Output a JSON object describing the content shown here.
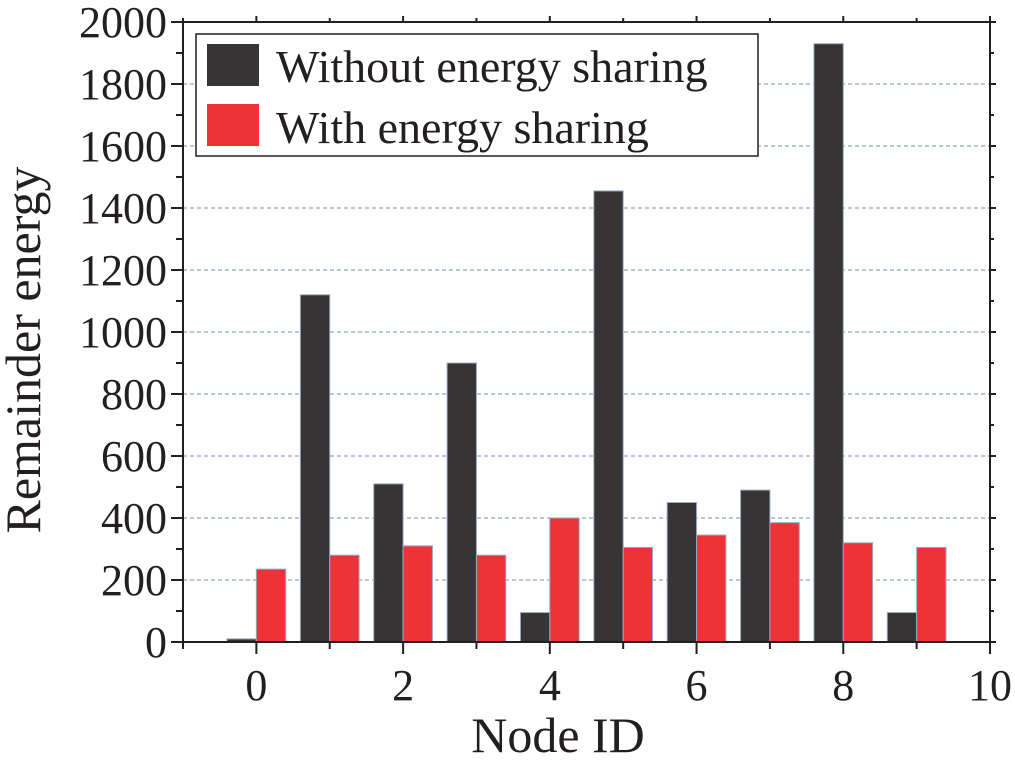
{
  "colors": {
    "without": "#373435",
    "with": "#ee3338",
    "grid": "#7b8fb8",
    "axis": "#231f20"
  },
  "chart_data": {
    "type": "bar",
    "title": "",
    "xlabel": "Node ID",
    "ylabel": "Remainder energy",
    "xlim": [
      -1,
      10
    ],
    "ylim": [
      0,
      2000
    ],
    "x_ticks": [
      "0",
      "2",
      "4",
      "6",
      "8",
      "10"
    ],
    "x_tick_values": [
      0,
      2,
      4,
      6,
      8,
      10
    ],
    "y_ticks": [
      "0",
      "200",
      "400",
      "600",
      "800",
      "1000",
      "1200",
      "1400",
      "1600",
      "1800",
      "2000"
    ],
    "y_tick_values": [
      0,
      200,
      400,
      600,
      800,
      1000,
      1200,
      1400,
      1600,
      1800,
      2000
    ],
    "grid": "horizontal dashed",
    "legend_position": "top-left",
    "x": [
      0,
      1,
      2,
      3,
      4,
      5,
      6,
      7,
      8,
      9
    ],
    "series": [
      {
        "name": "Without energy sharing",
        "values": [
          10,
          1120,
          510,
          900,
          95,
          1455,
          450,
          490,
          1930,
          95
        ]
      },
      {
        "name": "With energy sharing",
        "values": [
          235,
          280,
          310,
          280,
          400,
          305,
          345,
          385,
          320,
          305
        ]
      }
    ]
  }
}
